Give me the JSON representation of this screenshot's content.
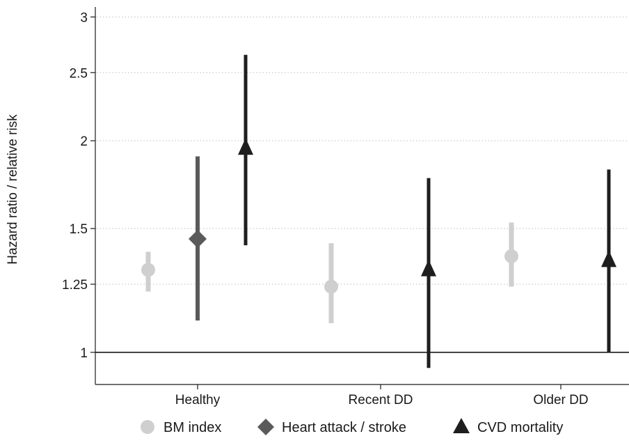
{
  "chart_data": {
    "type": "scatter",
    "ylabel": "Hazard ratio / relative risk",
    "xlabel": "",
    "yscale": "log",
    "ylim": [
      0.9,
      3.1
    ],
    "yticks": [
      {
        "value": 1,
        "label": "1"
      },
      {
        "value": 1.25,
        "label": "1.25"
      },
      {
        "value": 1.5,
        "label": "1.5"
      },
      {
        "value": 2,
        "label": "2"
      },
      {
        "value": 2.5,
        "label": "2.5"
      },
      {
        "value": 3,
        "label": "3"
      }
    ],
    "reference_line": 1,
    "grid": "horizontal dotted",
    "legend_position": "bottom",
    "categories": [
      "Healthy",
      "Recent DD",
      "Older DD"
    ],
    "series": [
      {
        "name": "BM index",
        "marker": "circle",
        "color": "#cfcfcf",
        "points": [
          {
            "category": "Healthy",
            "estimate": 1.31,
            "lower": 1.22,
            "upper": 1.39
          },
          {
            "category": "Recent DD",
            "estimate": 1.24,
            "lower": 1.1,
            "upper": 1.43
          },
          {
            "category": "Older DD",
            "estimate": 1.37,
            "lower": 1.24,
            "upper": 1.53
          }
        ]
      },
      {
        "name": "Heart attack / stroke",
        "marker": "diamond",
        "color": "#5a5a5a",
        "points": [
          {
            "category": "Healthy",
            "estimate": 1.45,
            "lower": 1.11,
            "upper": 1.9
          }
        ]
      },
      {
        "name": "CVD mortality",
        "marker": "triangle",
        "color": "#1e1e1e",
        "points": [
          {
            "category": "Healthy",
            "estimate": 1.95,
            "lower": 1.42,
            "upper": 2.65
          },
          {
            "category": "Recent DD",
            "estimate": 1.31,
            "lower": 0.95,
            "upper": 1.77
          },
          {
            "category": "Older DD",
            "estimate": 1.35,
            "lower": 1.0,
            "upper": 1.82
          }
        ]
      }
    ]
  }
}
